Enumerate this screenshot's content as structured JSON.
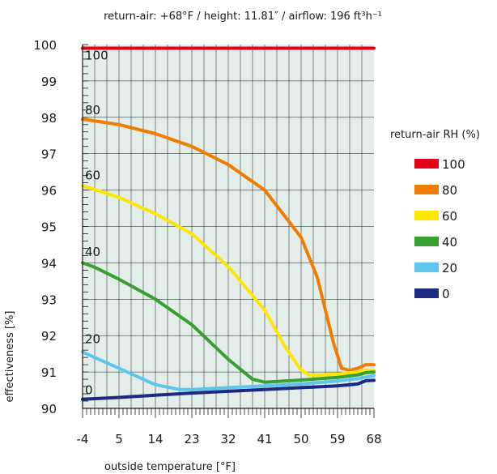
{
  "chart_data": {
    "type": "line",
    "title": "return-air: +68°F / height: 11.81″ / airflow: 196 ft³h⁻¹",
    "xlabel": "outside temperature [°F]",
    "ylabel": "effectiveness [%]",
    "xlim": [
      -4,
      68
    ],
    "ylim": [
      90,
      100
    ],
    "x_ticks": [
      "-4",
      "5",
      "14",
      "23",
      "32",
      "41",
      "50",
      "59",
      "68"
    ],
    "y_ticks": [
      "90",
      "91",
      "92",
      "93",
      "94",
      "95",
      "96",
      "97",
      "98",
      "99",
      "100"
    ],
    "grid": true,
    "legend_title": "return-air RH (%)",
    "legend_position": "right",
    "series": [
      {
        "name": "100",
        "color": "#e3001b",
        "x": [
          -4,
          5,
          14,
          23,
          32,
          41,
          50,
          59,
          68
        ],
        "y": [
          99.9,
          99.9,
          99.9,
          99.9,
          99.9,
          99.9,
          99.9,
          99.9,
          99.9
        ]
      },
      {
        "name": "80",
        "color": "#ef7d00",
        "x": [
          -4,
          5,
          14,
          23,
          32,
          41,
          50,
          54,
          58,
          60,
          62,
          64,
          66,
          68
        ],
        "y": [
          97.95,
          97.8,
          97.55,
          97.2,
          96.7,
          96.0,
          94.7,
          93.6,
          91.8,
          91.1,
          91.05,
          91.1,
          91.2,
          91.2
        ]
      },
      {
        "name": "60",
        "color": "#ffe600",
        "x": [
          -4,
          5,
          14,
          23,
          32,
          41,
          46,
          50,
          52,
          55,
          59,
          64,
          66,
          68
        ],
        "y": [
          96.12,
          95.8,
          95.35,
          94.8,
          93.9,
          92.7,
          91.7,
          91.05,
          90.92,
          90.92,
          90.94,
          91.0,
          91.05,
          91.05
        ]
      },
      {
        "name": "40",
        "color": "#37a030",
        "x": [
          -4,
          -1,
          5,
          14,
          23,
          32,
          38,
          41,
          50,
          59,
          64,
          66,
          68
        ],
        "y": [
          94.0,
          93.88,
          93.55,
          93.0,
          92.3,
          91.35,
          90.8,
          90.72,
          90.78,
          90.85,
          90.92,
          90.98,
          91.0
        ]
      },
      {
        "name": "20",
        "color": "#5ec5ee",
        "x": [
          -4,
          5,
          14,
          20,
          23,
          32,
          41,
          50,
          59,
          64,
          68
        ],
        "y": [
          91.55,
          91.1,
          90.65,
          90.52,
          90.52,
          90.57,
          90.62,
          90.67,
          90.75,
          90.82,
          90.9
        ]
      },
      {
        "name": "0",
        "color": "#1d2a82",
        "x": [
          -4,
          5,
          14,
          23,
          32,
          41,
          50,
          59,
          64,
          66,
          68
        ],
        "y": [
          90.25,
          90.3,
          90.36,
          90.42,
          90.47,
          90.52,
          90.57,
          90.62,
          90.67,
          90.76,
          90.77
        ]
      }
    ],
    "line_labels": [
      {
        "text": "100",
        "x": -4,
        "y": 99.7
      },
      {
        "text": "80",
        "x": -4,
        "y": 98.2
      },
      {
        "text": "60",
        "x": -4,
        "y": 96.4
      },
      {
        "text": "40",
        "x": -4,
        "y": 94.3
      },
      {
        "text": "20",
        "x": -4,
        "y": 91.9
      },
      {
        "text": "0",
        "x": -4,
        "y": 90.5
      }
    ]
  }
}
